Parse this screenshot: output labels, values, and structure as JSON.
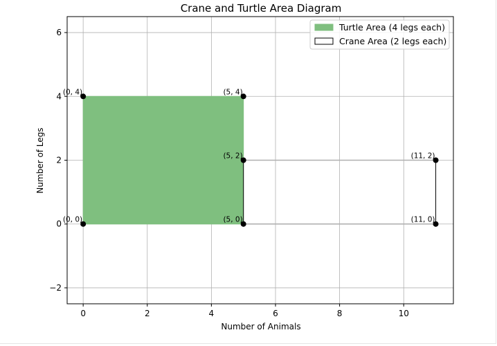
{
  "chart_data": {
    "type": "area",
    "title": "Crane and Turtle Area Diagram",
    "xlabel": "Number of Animals",
    "ylabel": "Number of Legs",
    "xlim": [
      -0.5,
      11.55
    ],
    "ylim": [
      -2.5,
      6.5
    ],
    "xticks": [
      0,
      2,
      4,
      6,
      8,
      10
    ],
    "yticks": [
      -2,
      0,
      2,
      4,
      6
    ],
    "grid": true,
    "legend_position": "top-right",
    "series": [
      {
        "name": "Turtle Area (4 legs each)",
        "kind": "filled-rectangle",
        "corners": [
          [
            0,
            0
          ],
          [
            5,
            0
          ],
          [
            5,
            4
          ],
          [
            0,
            4
          ]
        ],
        "fill": "#7fbf7f",
        "edge": "#7fbf7f"
      },
      {
        "name": "Crane Area (2 legs each)",
        "kind": "outlined-rectangle",
        "corners": [
          [
            5,
            0
          ],
          [
            11,
            0
          ],
          [
            11,
            2
          ],
          [
            5,
            2
          ]
        ],
        "fill": "none",
        "edge": "#000000"
      }
    ],
    "points": [
      {
        "x": 0,
        "y": 0,
        "label": "(0, 0)"
      },
      {
        "x": 0,
        "y": 4,
        "label": "(0, 4)"
      },
      {
        "x": 5,
        "y": 4,
        "label": "(5, 4)"
      },
      {
        "x": 5,
        "y": 2,
        "label": "(5, 2)"
      },
      {
        "x": 5,
        "y": 0,
        "label": "(5, 0)"
      },
      {
        "x": 11,
        "y": 2,
        "label": "(11, 2)"
      },
      {
        "x": 11,
        "y": 0,
        "label": "(11, 0)"
      }
    ],
    "colors": {
      "turtle_fill": "#7fbf7f",
      "crane_edge": "#000000",
      "grid": "#b0b0b0",
      "points": "#000000"
    }
  }
}
